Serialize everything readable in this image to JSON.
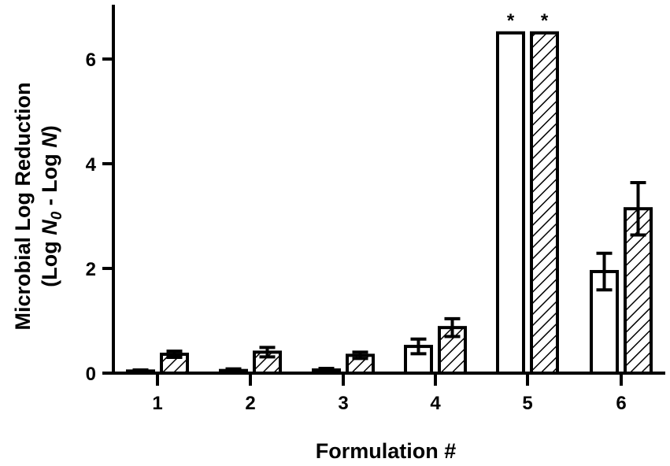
{
  "chart_data": {
    "type": "bar",
    "title": "",
    "xlabel": "Formulation #",
    "ylabel_line1": "Microbial Log Reduction",
    "ylabel_line2": "(Log N0 - Log N)",
    "ylabel": "Microbial Log Reduction (Log N0 - Log N)",
    "ylim": [
      0,
      7
    ],
    "yticks": [
      0,
      2,
      4,
      6
    ],
    "grid": false,
    "legend": "none",
    "categories": [
      "1",
      "2",
      "3",
      "4",
      "5",
      "6"
    ],
    "series": [
      {
        "name": "open",
        "fill": "#ffffff",
        "pattern": "none",
        "values": [
          0.04,
          0.05,
          0.06,
          0.51,
          6.5,
          1.94
        ],
        "errors": [
          0.02,
          0.03,
          0.03,
          0.14,
          0,
          0.35
        ],
        "annotations": [
          "",
          "",
          "",
          "",
          "*",
          ""
        ]
      },
      {
        "name": "hatched",
        "fill": "#ffffff",
        "pattern": "diagonal-hatch",
        "values": [
          0.36,
          0.4,
          0.34,
          0.87,
          6.5,
          3.14
        ],
        "errors": [
          0.06,
          0.09,
          0.06,
          0.17,
          0,
          0.5
        ],
        "annotations": [
          "",
          "",
          "",
          "",
          "*",
          ""
        ]
      }
    ]
  },
  "colors": {
    "ink": "#000000",
    "background": "#ffffff"
  }
}
